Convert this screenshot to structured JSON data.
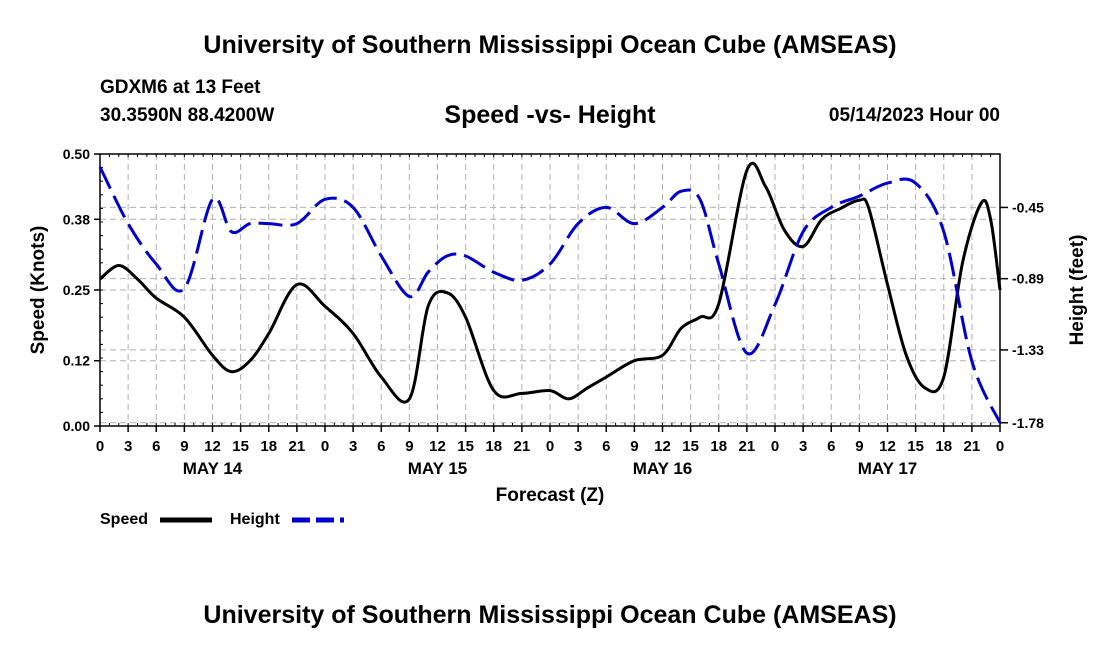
{
  "header": {
    "title": "University of Southern Mississippi Ocean Cube (AMSEAS)",
    "station": "GDXM6 at 13 Feet",
    "coords": "30.3590N  88.4200W",
    "subtitle": "Speed -vs- Height",
    "timestamp": "05/14/2023 Hour 00"
  },
  "footer": {
    "title": "University of Southern Mississippi Ocean Cube (AMSEAS)"
  },
  "chart_data": {
    "type": "line",
    "title": "Speed -vs- Height",
    "xlabel": "Forecast (Z)",
    "ylabel": "Speed (Knots)",
    "y2label": "Height (feet)",
    "x_range": [
      0,
      96
    ],
    "ylim": [
      0,
      0.5
    ],
    "y2lim": [
      -1.8,
      -0.12
    ],
    "grid": true,
    "x_ticks": [
      0,
      3,
      6,
      9,
      12,
      15,
      18,
      21,
      24,
      27,
      30,
      33,
      36,
      39,
      42,
      45,
      48,
      51,
      54,
      57,
      60,
      63,
      66,
      69,
      72,
      75,
      78,
      81,
      84,
      87,
      90,
      93,
      96
    ],
    "x_tick_labels": [
      "0",
      "3",
      "6",
      "9",
      "12",
      "15",
      "18",
      "21",
      "0",
      "3",
      "6",
      "9",
      "12",
      "15",
      "18",
      "21",
      "0",
      "3",
      "6",
      "9",
      "12",
      "15",
      "18",
      "21",
      "0",
      "3",
      "6",
      "9",
      "12",
      "15",
      "18",
      "21",
      "0"
    ],
    "day_labels": [
      {
        "x": 12,
        "label": "MAY 14"
      },
      {
        "x": 36,
        "label": "MAY 15"
      },
      {
        "x": 60,
        "label": "MAY 16"
      },
      {
        "x": 84,
        "label": "MAY 17"
      }
    ],
    "y_ticks": [
      0,
      0.12,
      0.25,
      0.38,
      0.5
    ],
    "y_tick_labels": [
      "0.00",
      "0.12",
      "0.25",
      "0.38",
      "0.50"
    ],
    "y2_ticks": [
      -0.45,
      -0.89,
      -1.33,
      -1.78
    ],
    "y2_tick_labels": [
      "-0.45",
      "-0.89",
      "-1.33",
      "-1.78"
    ],
    "legend": [
      {
        "name": "Speed",
        "color": "#000000",
        "style": "solid"
      },
      {
        "name": "Height",
        "color": "#0000cc",
        "style": "dashed"
      }
    ],
    "series": [
      {
        "name": "Speed",
        "axis": "left",
        "color": "#000000",
        "x": [
          0,
          2,
          4,
          6,
          9,
          12,
          14,
          16,
          18,
          21,
          24,
          27,
          30,
          33,
          35,
          37,
          39,
          42,
          45,
          48,
          50,
          52,
          54,
          57,
          60,
          62,
          64,
          66,
          69,
          71,
          73,
          75,
          77,
          79,
          81,
          82,
          84,
          86,
          88,
          90,
          92,
          94,
          95,
          96
        ],
        "values": [
          0.27,
          0.295,
          0.27,
          0.235,
          0.2,
          0.13,
          0.1,
          0.12,
          0.17,
          0.26,
          0.22,
          0.17,
          0.09,
          0.05,
          0.22,
          0.245,
          0.2,
          0.065,
          0.06,
          0.065,
          0.05,
          0.07,
          0.09,
          0.12,
          0.13,
          0.18,
          0.2,
          0.225,
          0.47,
          0.44,
          0.36,
          0.33,
          0.38,
          0.4,
          0.415,
          0.4,
          0.26,
          0.13,
          0.07,
          0.09,
          0.3,
          0.41,
          0.38,
          0.25
        ]
      },
      {
        "name": "Height",
        "axis": "right",
        "color": "#0000cc",
        "x": [
          0,
          3,
          6,
          9,
          12,
          14,
          16,
          18,
          21,
          24,
          27,
          30,
          33,
          35,
          37,
          39,
          42,
          45,
          48,
          51,
          54,
          57,
          60,
          62,
          64,
          66,
          69,
          72,
          75,
          78,
          81,
          84,
          87,
          90,
          93,
          96
        ],
        "values": [
          -0.2,
          -0.55,
          -0.8,
          -0.95,
          -0.4,
          -0.6,
          -0.55,
          -0.55,
          -0.55,
          -0.4,
          -0.45,
          -0.75,
          -1.0,
          -0.85,
          -0.75,
          -0.75,
          -0.85,
          -0.9,
          -0.8,
          -0.55,
          -0.45,
          -0.55,
          -0.45,
          -0.35,
          -0.4,
          -0.8,
          -1.35,
          -1.05,
          -0.6,
          -0.45,
          -0.38,
          -0.3,
          -0.3,
          -0.6,
          -1.4,
          -1.78
        ]
      }
    ]
  }
}
